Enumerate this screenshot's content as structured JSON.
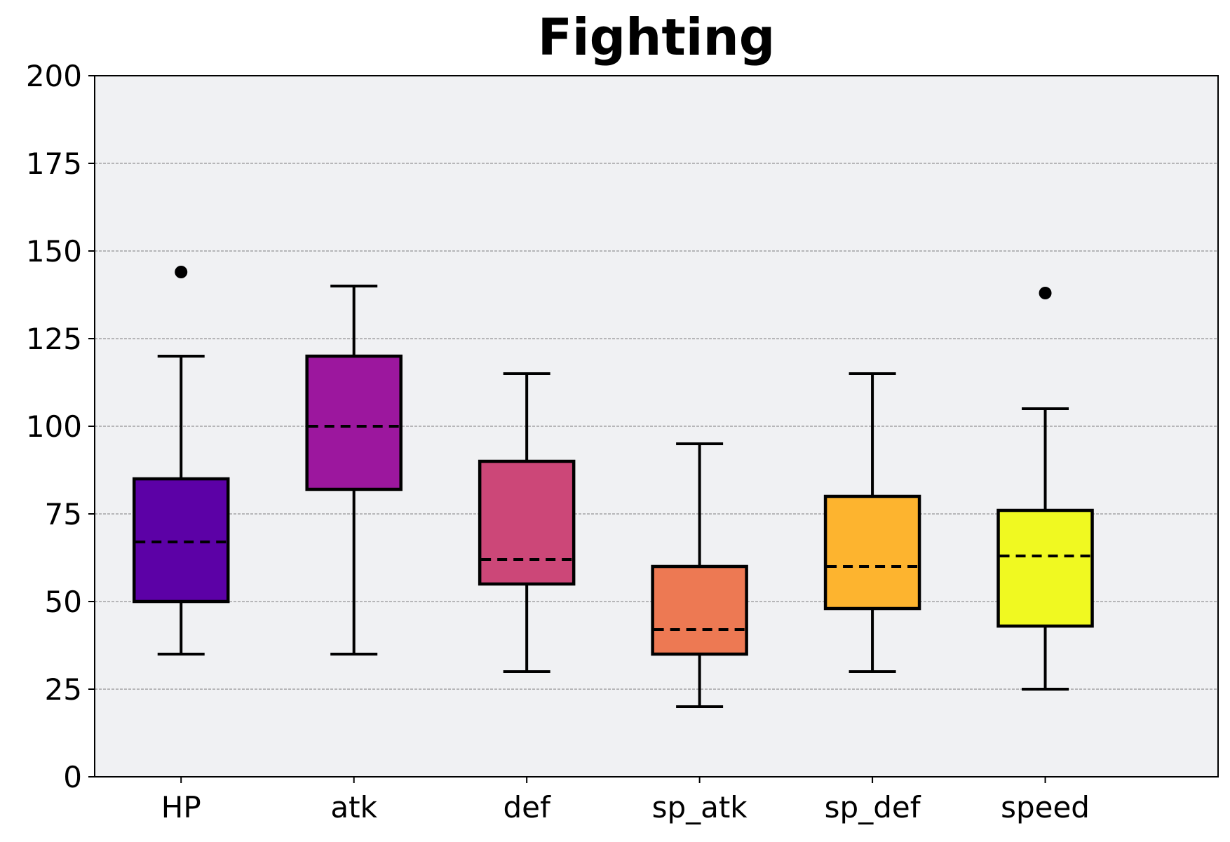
{
  "chart_data": {
    "type": "box",
    "title": "Fighting",
    "xlabel": "",
    "ylabel": "",
    "ylim": [
      0,
      200
    ],
    "yticks": [
      0,
      25,
      50,
      75,
      100,
      125,
      150,
      175,
      200
    ],
    "grid": {
      "y": true,
      "x": false,
      "style": "dashed"
    },
    "background": "#f0f1f3",
    "median_style": "dashed",
    "categories": [
      "HP",
      "atk",
      "def",
      "sp_atk",
      "sp_def",
      "speed"
    ],
    "boxes": [
      {
        "label": "HP",
        "whisker_low": 35,
        "q1": 50,
        "median": 67,
        "q3": 85,
        "whisker_high": 120,
        "outliers": [
          144
        ],
        "color": "#5c01a6"
      },
      {
        "label": "atk",
        "whisker_low": 35,
        "q1": 82,
        "median": 100,
        "q3": 120,
        "whisker_high": 140,
        "outliers": [],
        "color": "#9c179e"
      },
      {
        "label": "def",
        "whisker_low": 30,
        "q1": 55,
        "median": 62,
        "q3": 90,
        "whisker_high": 115,
        "outliers": [],
        "color": "#cc4778"
      },
      {
        "label": "sp_atk",
        "whisker_low": 20,
        "q1": 35,
        "median": 42,
        "q3": 60,
        "whisker_high": 95,
        "outliers": [],
        "color": "#ed7953"
      },
      {
        "label": "sp_def",
        "whisker_low": 30,
        "q1": 48,
        "median": 60,
        "q3": 80,
        "whisker_high": 115,
        "outliers": [],
        "color": "#fdb42f"
      },
      {
        "label": "speed",
        "whisker_low": 25,
        "q1": 43,
        "median": 63,
        "q3": 76,
        "whisker_high": 105,
        "outliers": [
          138
        ],
        "color": "#f0f921"
      }
    ]
  }
}
